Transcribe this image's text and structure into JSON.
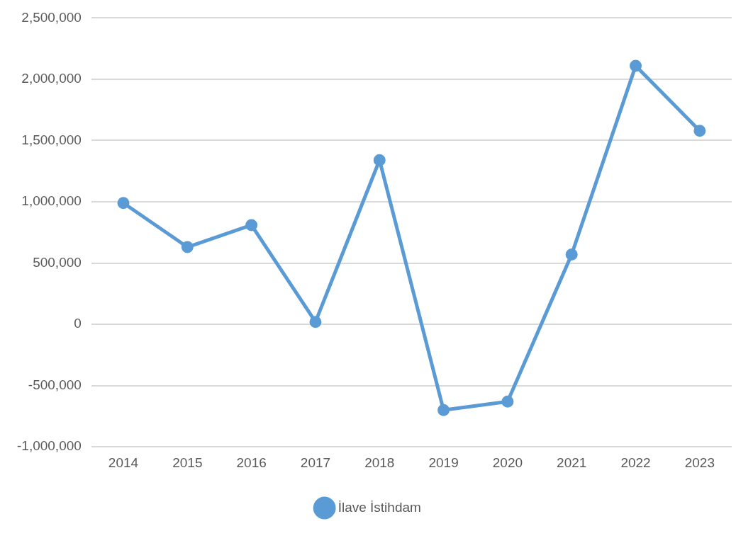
{
  "chart_data": {
    "type": "line",
    "categories": [
      "2014",
      "2015",
      "2016",
      "2017",
      "2018",
      "2019",
      "2020",
      "2021",
      "2022",
      "2023"
    ],
    "series": [
      {
        "name": "İlave İstihdam",
        "color": "#5b9bd5",
        "values": [
          990000,
          630000,
          810000,
          20000,
          1340000,
          -700000,
          -630000,
          570000,
          2110000,
          1580000
        ]
      }
    ],
    "ylim": [
      -1000000,
      2500000
    ],
    "yticks": [
      {
        "value": -1000000,
        "label": "-1,000,000"
      },
      {
        "value": -500000,
        "label": "-500,000"
      },
      {
        "value": 0,
        "label": "0"
      },
      {
        "value": 500000,
        "label": "500,000"
      },
      {
        "value": 1000000,
        "label": "1,000,000"
      },
      {
        "value": 1500000,
        "label": "1,500,000"
      },
      {
        "value": 2000000,
        "label": "2,000,000"
      },
      {
        "value": 2500000,
        "label": "2,500,000"
      }
    ],
    "grid": "y",
    "legend": "bottom",
    "marker": "circle",
    "line_style": "solid"
  }
}
